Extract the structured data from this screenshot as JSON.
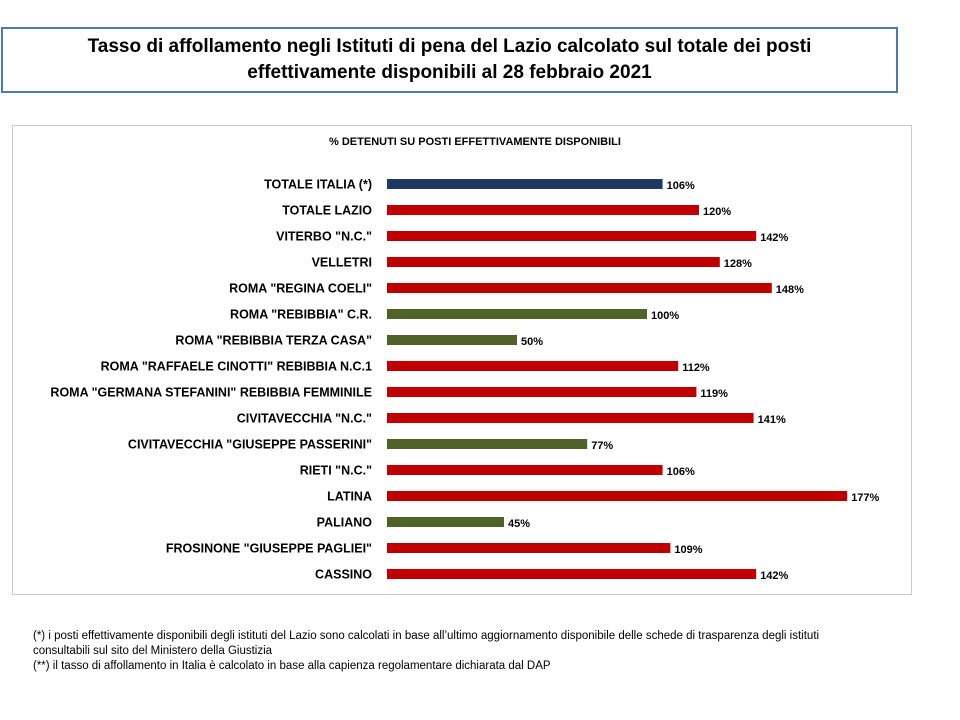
{
  "page": {
    "title_line1": "Tasso di affollamento negli Istituti di pena del Lazio calcolato sul totale dei posti",
    "title_line2": "effettivamente disponibili al 28 febbraio 2021"
  },
  "colors": {
    "italia": "#1f3864",
    "over": "#c00000",
    "under": "#4f6228"
  },
  "chart_data": {
    "type": "bar",
    "orientation": "horizontal",
    "title": "% DETENUTI SU POSTI EFFETTIVAMENTE DISPONIBILI",
    "xlim": [
      0,
      180
    ],
    "grid": false,
    "categories": [
      "TOTALE ITALIA (*)",
      "TOTALE LAZIO",
      "VITERBO \"N.C.\"",
      "VELLETRI",
      "ROMA \"REGINA COELI\"",
      "ROMA \"REBIBBIA\" C.R.",
      "ROMA \"REBIBBIA TERZA CASA\"",
      "ROMA \"RAFFAELE CINOTTI\" REBIBBIA N.C.1",
      "ROMA \"GERMANA STEFANINI\" REBIBBIA FEMMINILE",
      "CIVITAVECCHIA \"N.C.\"",
      "CIVITAVECCHIA \"GIUSEPPE PASSERINI\"",
      "RIETI \"N.C.\"",
      "LATINA",
      "PALIANO",
      "FROSINONE \"GIUSEPPE PAGLIEI\"",
      "CASSINO"
    ],
    "values": [
      106,
      120,
      142,
      128,
      148,
      100,
      50,
      112,
      119,
      141,
      77,
      106,
      177,
      45,
      109,
      142
    ],
    "labels": [
      "106%",
      "120%",
      "142%",
      "128%",
      "148%",
      "100%",
      "50%",
      "112%",
      "119%",
      "141%",
      "77%",
      "106%",
      "177%",
      "45%",
      "109%",
      "142%"
    ],
    "bar_colors": [
      "#1f3864",
      "#c00000",
      "#c00000",
      "#c00000",
      "#c00000",
      "#4f6228",
      "#4f6228",
      "#c00000",
      "#c00000",
      "#c00000",
      "#4f6228",
      "#c00000",
      "#c00000",
      "#4f6228",
      "#c00000",
      "#c00000"
    ]
  },
  "footnotes": {
    "note1_line1": "(*) i posti effettivamente disponibili  degli istituti del Lazio sono calcolati in base all’ultimo aggiornamento disponibile  delle schede di trasparenza degli istituti",
    "note1_line2": "consultabili sul sito del Ministero della Giustizia",
    "note2": "(**) il tasso di affollamento in Italia è calcolato in base alla capienza regolamentare dichiarata dal DAP"
  }
}
